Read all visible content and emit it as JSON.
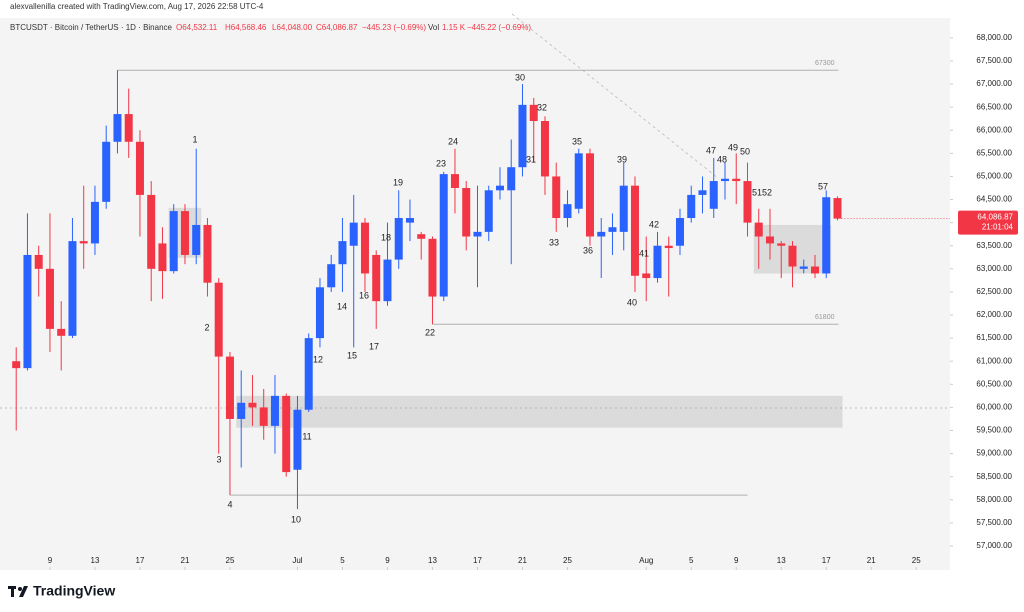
{
  "chart_data": {
    "type": "candlestick",
    "header": "alexvallenilla created with TradingView.com, Aug 17, 2026 22:58 UTC-4",
    "symbol": "BTCUSDT · Bitcoin / TetherUS · 1D · Binance",
    "ohlc_text": [
      "O64,532.11",
      "H64,568.46",
      "L64,048.00",
      "C64,086.87",
      "−445.23 (−0.69%)"
    ],
    "volume_label": "Vol",
    "volume_text": "1.15 K",
    "volume_change": "−445.22 (−0.69%)",
    "price_label": "64,086.87",
    "countdown": "21:01:04",
    "brand": "TradingView",
    "up_color": "#2962ff",
    "down_color": "#f23645",
    "categories": [
      "Jun 6",
      "Jun 7",
      "Jun 8",
      "Jun 9",
      "Jun 10",
      "Jun 11",
      "Jun 12",
      "Jun 13",
      "Jun 14",
      "Jun 15",
      "Jun 16",
      "Jun 17",
      "Jun 18",
      "Jun 19",
      "Jun 20",
      "Jun 21",
      "Jun 22",
      "Jun 23",
      "Jun 24",
      "Jun 25",
      "Jun 26",
      "Jun 27",
      "Jun 28",
      "Jun 29",
      "Jun 30",
      "Jul 1",
      "Jul 2",
      "Jul 3",
      "Jul 4",
      "Jul 5",
      "Jul 6",
      "Jul 7",
      "Jul 8",
      "Jul 9",
      "Jul 10",
      "Jul 11",
      "Jul 12",
      "Jul 13",
      "Jul 14",
      "Jul 15",
      "Jul 16",
      "Jul 17",
      "Jul 18",
      "Jul 19",
      "Jul 20",
      "Jul 21",
      "Jul 22",
      "Jul 23",
      "Jul 24",
      "Jul 25",
      "Jul 26",
      "Jul 27",
      "Jul 28",
      "Jul 29",
      "Jul 30",
      "Jul 31",
      "Aug 1",
      "Aug 2",
      "Aug 3",
      "Aug 4",
      "Aug 5",
      "Aug 6",
      "Aug 7",
      "Aug 8",
      "Aug 9",
      "Aug 10",
      "Aug 11",
      "Aug 12",
      "Aug 13",
      "Aug 14",
      "Aug 15",
      "Aug 16",
      "Aug 17",
      "Aug 18"
    ],
    "open": [
      61000,
      60850,
      63300,
      63000,
      61700,
      61550,
      63600,
      63550,
      64450,
      65750,
      66350,
      65750,
      64600,
      63550,
      62950,
      64250,
      63300,
      63950,
      62700,
      61100,
      59750,
      60100,
      60000,
      59600,
      60250,
      58650,
      59950,
      61500,
      62600,
      63100,
      63500,
      64000,
      63300,
      62300,
      63200,
      64000,
      63750,
      63650,
      62400,
      65050,
      64750,
      63700,
      63800,
      64700,
      64700,
      65200,
      66550,
      66200,
      65000,
      64100,
      64300,
      65500,
      63700,
      63800,
      63800,
      64800,
      62900,
      62800,
      63500,
      63500,
      64100,
      64600,
      64300,
      64900,
      64950,
      64900,
      64000,
      63700,
      63550,
      63500,
      63000,
      63050,
      62900,
      64532.11
    ],
    "high": [
      61300,
      64200,
      63500,
      64200,
      62300,
      64100,
      64800,
      64800,
      66100,
      67300,
      66900,
      66000,
      64900,
      63900,
      64400,
      64400,
      65600,
      64100,
      62800,
      61200,
      60800,
      60700,
      60400,
      60700,
      60300,
      60250,
      61600,
      62800,
      63300,
      64100,
      64600,
      64100,
      63400,
      64000,
      64700,
      64500,
      63800,
      63700,
      65100,
      65600,
      64900,
      64800,
      64800,
      65200,
      65800,
      67000,
      66700,
      66300,
      65300,
      64700,
      65600,
      65600,
      64100,
      64200,
      65300,
      65000,
      63700,
      63800,
      63700,
      64300,
      64800,
      65000,
      65400,
      65300,
      65500,
      65300,
      64300,
      64300,
      63600,
      63600,
      63200,
      63300,
      64700,
      64568.46
    ],
    "low": [
      59500,
      60800,
      62400,
      61200,
      60800,
      61500,
      63000,
      63300,
      64300,
      65500,
      65400,
      63700,
      62300,
      62350,
      62900,
      63100,
      63100,
      62400,
      59000,
      58100,
      58700,
      59600,
      59300,
      59000,
      58500,
      57800,
      59900,
      61300,
      62500,
      62500,
      61300,
      62500,
      61700,
      62200,
      63000,
      63600,
      63200,
      61800,
      62300,
      64200,
      63400,
      62600,
      63600,
      64500,
      63100,
      65000,
      65300,
      64600,
      63800,
      63900,
      64200,
      63500,
      62800,
      63300,
      63400,
      62500,
      62300,
      62700,
      62400,
      63300,
      64000,
      64200,
      64100,
      64500,
      64400,
      63700,
      63000,
      63200,
      62800,
      62600,
      62900,
      62800,
      62800,
      64048
    ],
    "close": [
      60850,
      63300,
      63000,
      61700,
      61550,
      63600,
      63550,
      64450,
      65750,
      66350,
      65750,
      64600,
      63000,
      62950,
      64250,
      63300,
      63950,
      62700,
      61100,
      59750,
      60100,
      60000,
      59600,
      60250,
      58600,
      59950,
      61500,
      62600,
      63100,
      63600,
      64000,
      62900,
      62300,
      63200,
      64100,
      64100,
      63650,
      62400,
      65050,
      64750,
      63700,
      63800,
      64700,
      64800,
      65200,
      66550,
      66200,
      65000,
      64100,
      64400,
      65500,
      63700,
      63800,
      63900,
      64800,
      62850,
      62800,
      63500,
      63450,
      64100,
      64600,
      64700,
      64900,
      64950,
      64900,
      64000,
      63700,
      63550,
      63500,
      63050,
      63050,
      62900,
      64550,
      64086.87
    ],
    "xlim": [
      -1.44,
      83
    ],
    "xticks": [
      {
        "value": 3,
        "label": "9"
      },
      {
        "value": 7,
        "label": "13"
      },
      {
        "value": 11,
        "label": "17"
      },
      {
        "value": 15,
        "label": "21"
      },
      {
        "value": 19,
        "label": "25"
      },
      {
        "value": 25,
        "label": "Jul"
      },
      {
        "value": 29,
        "label": "5"
      },
      {
        "value": 33,
        "label": "9"
      },
      {
        "value": 37,
        "label": "13"
      },
      {
        "value": 41,
        "label": "17"
      },
      {
        "value": 45,
        "label": "21"
      },
      {
        "value": 49,
        "label": "25"
      },
      {
        "value": 56,
        "label": "Aug"
      },
      {
        "value": 60,
        "label": "5"
      },
      {
        "value": 64,
        "label": "9"
      },
      {
        "value": 68,
        "label": "13"
      },
      {
        "value": 72,
        "label": "17"
      },
      {
        "value": 76,
        "label": "21"
      },
      {
        "value": 80,
        "label": "25"
      }
    ],
    "ylim": [
      56480,
      68430
    ],
    "yticks": [
      {
        "value": 57000,
        "label": "57,000.00"
      },
      {
        "value": 57500,
        "label": "57,500.00"
      },
      {
        "value": 58000,
        "label": "58,000.00"
      },
      {
        "value": 58500,
        "label": "58,500.00"
      },
      {
        "value": 59000,
        "label": "59,000.00"
      },
      {
        "value": 59500,
        "label": "59,500.00"
      },
      {
        "value": 60000,
        "label": "60,000.00"
      },
      {
        "value": 60500,
        "label": "60,500.00"
      },
      {
        "value": 61000,
        "label": "61,000.00"
      },
      {
        "value": 61500,
        "label": "61,500.00"
      },
      {
        "value": 62000,
        "label": "62,000.00"
      },
      {
        "value": 62500,
        "label": "62,500.00"
      },
      {
        "value": 63000,
        "label": "63,000.00"
      },
      {
        "value": 63500,
        "label": "63,500.00"
      },
      {
        "value": 64000,
        "label": "64,000.00"
      },
      {
        "value": 64500,
        "label": "64,500.00"
      },
      {
        "value": 65000,
        "label": "65,000.00"
      },
      {
        "value": 65500,
        "label": "65,500.00"
      },
      {
        "value": 66000,
        "label": "66,000.00"
      },
      {
        "value": 66500,
        "label": "66,500.00"
      },
      {
        "value": 67000,
        "label": "67,000.00"
      },
      {
        "value": 67500,
        "label": "67,500.00"
      },
      {
        "value": 68000,
        "label": "68,000.00"
      }
    ],
    "levels": [
      {
        "value": 67300,
        "from": "Jun 15",
        "to": "Aug 18"
      },
      {
        "value": 61800,
        "from": "Jul 13",
        "to": "Aug 18"
      }
    ],
    "support_lines": [
      {
        "value": 58100,
        "from": "Jun 25",
        "to": "Aug 10"
      }
    ],
    "zones": [
      {
        "from": "Jun 26",
        "to": "Aug 18",
        "low": 59560,
        "high": 60250
      },
      {
        "from": "Aug 11",
        "to": "Aug 17",
        "low": 62900,
        "high": 63950
      },
      {
        "from": "Jun 20",
        "to": "Jun 22",
        "low": 63240,
        "high": 64320
      }
    ],
    "annotations": [
      "1",
      "2",
      "3",
      "4",
      "10",
      "11",
      "12",
      "14",
      "15",
      "16",
      "17",
      "18",
      "19",
      "22",
      "23",
      "24",
      "30",
      "31",
      "32",
      "33",
      "35",
      "36",
      "39",
      "40",
      "41",
      "42",
      "47",
      "48",
      "49",
      "50",
      "51",
      "52",
      "57"
    ]
  }
}
